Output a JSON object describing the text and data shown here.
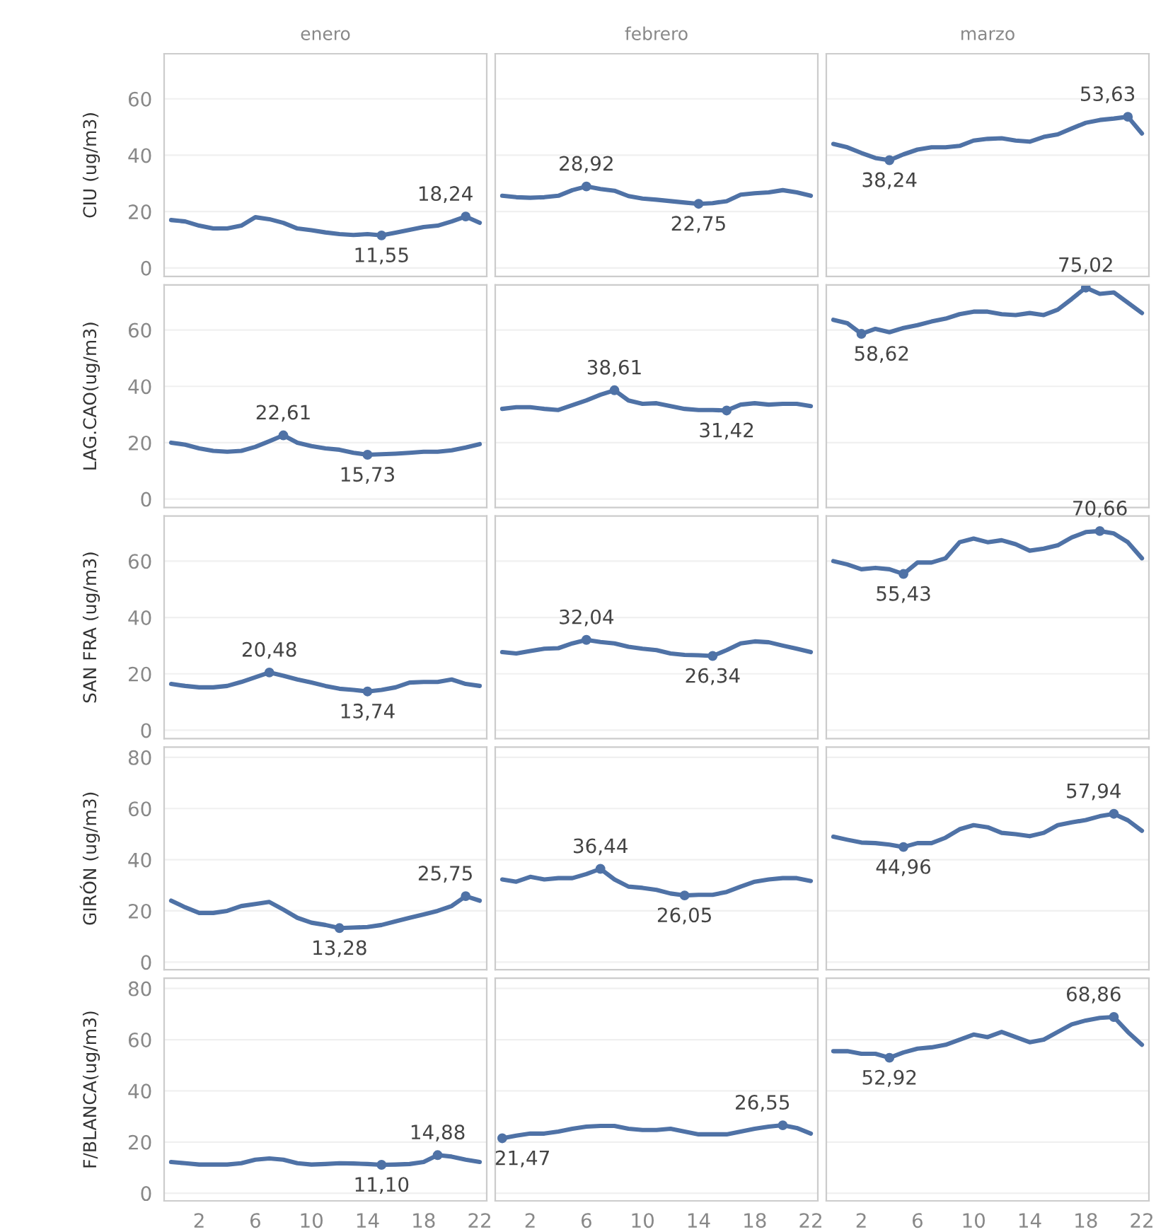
{
  "chart_data": [
    {
      "type": "line",
      "title": "enero",
      "ylabel": "CIU (ug/m3)",
      "color": "#4f72a6",
      "x": [
        0,
        1,
        2,
        3,
        4,
        5,
        6,
        7,
        8,
        9,
        10,
        11,
        12,
        13,
        14,
        15,
        16,
        17,
        18,
        19,
        20,
        21,
        22
      ],
      "values": [
        17,
        16.5,
        15,
        14,
        14,
        15,
        18,
        17.3,
        16,
        14,
        13.4,
        12.6,
        12,
        11.7,
        12,
        11.55,
        12.5,
        13.5,
        14.5,
        15,
        16.5,
        18.24,
        16
      ],
      "xlim": [
        -0.5,
        22.5
      ],
      "xticks": [
        2,
        6,
        10,
        14,
        18,
        22
      ],
      "ylim": [
        -3,
        76
      ],
      "yticks": [
        0,
        20,
        40,
        60
      ],
      "grid": "y",
      "tick_labels": "y",
      "annotations": [
        {
          "text": "18,24",
          "x": 21,
          "y": 18.24
        },
        {
          "text": "11,55",
          "x": 15,
          "y": 11.55
        }
      ]
    },
    {
      "type": "line",
      "title": "febrero",
      "color": "#4f72a6",
      "x": [
        0,
        1,
        2,
        3,
        4,
        5,
        6,
        7,
        8,
        9,
        10,
        11,
        12,
        13,
        14,
        15,
        16,
        17,
        18,
        19,
        20,
        21,
        22
      ],
      "values": [
        25.6,
        25.1,
        24.9,
        25.1,
        25.6,
        27.6,
        28.92,
        28,
        27.4,
        25.5,
        24.6,
        24.2,
        23.7,
        23.2,
        22.75,
        23,
        23.7,
        26,
        26.5,
        26.8,
        27.6,
        26.8,
        25.6
      ],
      "xlim": [
        -0.5,
        22.5
      ],
      "xticks": [
        2,
        6,
        10,
        14,
        18,
        22
      ],
      "ylim": [
        -3,
        76
      ],
      "yticks": [
        0,
        20,
        40,
        60
      ],
      "grid": "y",
      "tick_labels": false,
      "annotations": [
        {
          "text": "28,92",
          "x": 6,
          "y": 28.92
        },
        {
          "text": "22,75",
          "x": 14,
          "y": 22.75
        }
      ]
    },
    {
      "type": "line",
      "title": "marzo",
      "color": "#4f72a6",
      "x": [
        0,
        1,
        2,
        3,
        4,
        5,
        6,
        7,
        8,
        9,
        10,
        11,
        12,
        13,
        14,
        15,
        16,
        17,
        18,
        19,
        20,
        21,
        22
      ],
      "values": [
        44,
        42.8,
        40.8,
        39,
        38.24,
        40.3,
        42,
        42.8,
        42.8,
        43.3,
        45.2,
        45.8,
        46,
        45.2,
        44.8,
        46.5,
        47.4,
        49.5,
        51.5,
        52.5,
        53,
        53.63,
        47.7
      ],
      "xlim": [
        -0.5,
        22.5
      ],
      "xticks": [
        2,
        6,
        10,
        14,
        18,
        22
      ],
      "ylim": [
        -3,
        76
      ],
      "yticks": [
        0,
        20,
        40,
        60
      ],
      "grid": "y",
      "tick_labels": false,
      "annotations": [
        {
          "text": "53,63",
          "x": 21,
          "y": 53.63
        },
        {
          "text": "38,24",
          "x": 4,
          "y": 38.24
        }
      ]
    },
    {
      "type": "line",
      "ylabel": "LAG.CAO(ug/m3)",
      "color": "#4f72a6",
      "x": [
        0,
        1,
        2,
        3,
        4,
        5,
        6,
        7,
        8,
        9,
        10,
        11,
        12,
        13,
        14,
        15,
        16,
        17,
        18,
        19,
        20,
        21,
        22
      ],
      "values": [
        20,
        19.3,
        18,
        17.1,
        16.8,
        17.1,
        18.5,
        20.5,
        22.61,
        20,
        18.8,
        18,
        17.5,
        16.4,
        15.73,
        15.9,
        16.1,
        16.4,
        16.8,
        16.8,
        17.3,
        18.3,
        19.5
      ],
      "xlim": [
        -0.5,
        22.5
      ],
      "xticks": [
        2,
        6,
        10,
        14,
        18,
        22
      ],
      "ylim": [
        -3,
        76
      ],
      "yticks": [
        0,
        20,
        40,
        60
      ],
      "grid": "y",
      "tick_labels": "y",
      "annotations": [
        {
          "text": "22,61",
          "x": 8,
          "y": 22.61
        },
        {
          "text": "15,73",
          "x": 14,
          "y": 15.73
        }
      ]
    },
    {
      "type": "line",
      "color": "#4f72a6",
      "x": [
        0,
        1,
        2,
        3,
        4,
        5,
        6,
        7,
        8,
        9,
        10,
        11,
        12,
        13,
        14,
        15,
        16,
        17,
        18,
        19,
        20,
        21,
        22
      ],
      "values": [
        32,
        32.6,
        32.6,
        32,
        31.6,
        33.3,
        35,
        37,
        38.61,
        35,
        33.8,
        34,
        33,
        32,
        31.6,
        31.6,
        31.42,
        33.5,
        34,
        33.5,
        33.8,
        33.8,
        33
      ],
      "xlim": [
        -0.5,
        22.5
      ],
      "xticks": [
        2,
        6,
        10,
        14,
        18,
        22
      ],
      "ylim": [
        -3,
        76
      ],
      "yticks": [
        0,
        20,
        40,
        60
      ],
      "grid": "y",
      "tick_labels": false,
      "annotations": [
        {
          "text": "38,61",
          "x": 8,
          "y": 38.61
        },
        {
          "text": "31,42",
          "x": 16,
          "y": 31.42
        }
      ]
    },
    {
      "type": "line",
      "color": "#4f72a6",
      "x": [
        0,
        1,
        2,
        3,
        4,
        5,
        6,
        7,
        8,
        9,
        10,
        11,
        12,
        13,
        14,
        15,
        16,
        17,
        18,
        19,
        20,
        21,
        22
      ],
      "values": [
        63.6,
        62.4,
        58.62,
        60.4,
        59.2,
        60.7,
        61.7,
        63,
        64,
        65.6,
        66.5,
        66.5,
        65.6,
        65.3,
        66,
        65.3,
        67.2,
        71,
        75.02,
        72.8,
        73.3,
        69.7,
        66
      ],
      "xlim": [
        -0.5,
        22.5
      ],
      "xticks": [
        2,
        6,
        10,
        14,
        18,
        22
      ],
      "ylim": [
        -3,
        76
      ],
      "yticks": [
        0,
        20,
        40,
        60
      ],
      "grid": "y",
      "tick_labels": false,
      "annotations": [
        {
          "text": "75,02",
          "x": 18,
          "y": 75.02
        },
        {
          "text": "58,62",
          "x": 2,
          "y": 58.62
        }
      ]
    },
    {
      "type": "line",
      "ylabel": "SAN FRA (ug/m3)",
      "color": "#4f72a6",
      "x": [
        0,
        1,
        2,
        3,
        4,
        5,
        6,
        7,
        8,
        9,
        10,
        11,
        12,
        13,
        14,
        15,
        16,
        17,
        18,
        19,
        20,
        21,
        22
      ],
      "values": [
        16.4,
        15.7,
        15.2,
        15.2,
        15.7,
        17.1,
        18.8,
        20.48,
        19.3,
        18,
        16.9,
        15.7,
        14.7,
        14.3,
        13.74,
        14.3,
        15.2,
        16.9,
        17.1,
        17.1,
        18,
        16.4,
        15.7
      ],
      "xlim": [
        -0.5,
        22.5
      ],
      "xticks": [
        2,
        6,
        10,
        14,
        18,
        22
      ],
      "ylim": [
        -3,
        76
      ],
      "yticks": [
        0,
        20,
        40,
        60
      ],
      "grid": "y",
      "tick_labels": "y",
      "annotations": [
        {
          "text": "20,48",
          "x": 7,
          "y": 20.48
        },
        {
          "text": "13,74",
          "x": 14,
          "y": 13.74
        }
      ]
    },
    {
      "type": "line",
      "color": "#4f72a6",
      "x": [
        0,
        1,
        2,
        3,
        4,
        5,
        6,
        7,
        8,
        9,
        10,
        11,
        12,
        13,
        14,
        15,
        16,
        17,
        18,
        19,
        20,
        21,
        22
      ],
      "values": [
        27.7,
        27.2,
        28.1,
        28.9,
        29.1,
        30.8,
        32.04,
        31.3,
        30.8,
        29.6,
        28.9,
        28.4,
        27.2,
        26.7,
        26.6,
        26.34,
        28.4,
        30.8,
        31.5,
        31.2,
        30,
        28.9,
        27.7
      ],
      "xlim": [
        -0.5,
        22.5
      ],
      "xticks": [
        2,
        6,
        10,
        14,
        18,
        22
      ],
      "ylim": [
        -3,
        76
      ],
      "yticks": [
        0,
        20,
        40,
        60
      ],
      "grid": "y",
      "tick_labels": false,
      "annotations": [
        {
          "text": "32,04",
          "x": 6,
          "y": 32.04
        },
        {
          "text": "26,34",
          "x": 15,
          "y": 26.34
        }
      ]
    },
    {
      "type": "line",
      "color": "#4f72a6",
      "x": [
        0,
        1,
        2,
        3,
        4,
        5,
        6,
        7,
        8,
        9,
        10,
        11,
        12,
        13,
        14,
        15,
        16,
        17,
        18,
        19,
        20,
        21,
        22
      ],
      "values": [
        60,
        58.8,
        57.1,
        57.6,
        57.1,
        55.43,
        59.5,
        59.5,
        61,
        66.7,
        68,
        66.7,
        67.4,
        66,
        63.7,
        64.4,
        65.6,
        68.4,
        70.3,
        70.66,
        69.8,
        66.7,
        61
      ],
      "xlim": [
        -0.5,
        22.5
      ],
      "xticks": [
        2,
        6,
        10,
        14,
        18,
        22
      ],
      "ylim": [
        -3,
        76
      ],
      "yticks": [
        0,
        20,
        40,
        60
      ],
      "grid": "y",
      "tick_labels": false,
      "annotations": [
        {
          "text": "70,66",
          "x": 19,
          "y": 70.66
        },
        {
          "text": "55,43",
          "x": 5,
          "y": 55.43
        }
      ]
    },
    {
      "type": "line",
      "ylabel": "GIRÓN (ug/m3)",
      "color": "#4f72a6",
      "x": [
        0,
        1,
        2,
        3,
        4,
        5,
        6,
        7,
        8,
        9,
        10,
        11,
        12,
        13,
        14,
        15,
        16,
        17,
        18,
        19,
        20,
        21,
        22
      ],
      "values": [
        24,
        21.4,
        19.2,
        19.2,
        20,
        21.9,
        22.7,
        23.5,
        20.5,
        17.3,
        15.4,
        14.5,
        13.28,
        13.5,
        13.7,
        14.5,
        15.9,
        17.3,
        18.6,
        20,
        21.9,
        25.75,
        24
      ],
      "xlim": [
        -0.5,
        22.5
      ],
      "xticks": [
        2,
        6,
        10,
        14,
        18,
        22
      ],
      "ylim": [
        -3,
        84
      ],
      "yticks": [
        0,
        20,
        40,
        60,
        80
      ],
      "grid": "y",
      "tick_labels": "y",
      "annotations": [
        {
          "text": "25,75",
          "x": 21,
          "y": 25.75
        },
        {
          "text": "13,28",
          "x": 12,
          "y": 13.28
        }
      ]
    },
    {
      "type": "line",
      "color": "#4f72a6",
      "x": [
        0,
        1,
        2,
        3,
        4,
        5,
        6,
        7,
        8,
        9,
        10,
        11,
        12,
        13,
        14,
        15,
        16,
        17,
        18,
        19,
        20,
        21,
        22
      ],
      "values": [
        32.3,
        31.4,
        33.3,
        32.3,
        32.8,
        32.8,
        34.4,
        36.44,
        32.3,
        29.5,
        29,
        28.2,
        26.8,
        26.05,
        26.3,
        26.3,
        27.4,
        29.5,
        31.4,
        32.3,
        32.8,
        32.8,
        31.7
      ],
      "xlim": [
        -0.5,
        22.5
      ],
      "xticks": [
        2,
        6,
        10,
        14,
        18,
        22
      ],
      "ylim": [
        -3,
        84
      ],
      "yticks": [
        0,
        20,
        40,
        60,
        80
      ],
      "grid": "y",
      "tick_labels": false,
      "annotations": [
        {
          "text": "36,44",
          "x": 7,
          "y": 36.44
        },
        {
          "text": "26,05",
          "x": 13,
          "y": 26.05
        }
      ]
    },
    {
      "type": "line",
      "color": "#4f72a6",
      "x": [
        0,
        1,
        2,
        3,
        4,
        5,
        6,
        7,
        8,
        9,
        10,
        11,
        12,
        13,
        14,
        15,
        16,
        17,
        18,
        19,
        20,
        21,
        22
      ],
      "values": [
        49,
        47.8,
        46.7,
        46.5,
        45.9,
        44.96,
        46.5,
        46.5,
        48.6,
        51.9,
        53.5,
        52.7,
        50.5,
        50,
        49.2,
        50.5,
        53.5,
        54.6,
        55.5,
        57,
        57.94,
        55.4,
        51.3
      ],
      "xlim": [
        -0.5,
        22.5
      ],
      "xticks": [
        2,
        6,
        10,
        14,
        18,
        22
      ],
      "ylim": [
        -3,
        84
      ],
      "yticks": [
        0,
        20,
        40,
        60,
        80
      ],
      "grid": "y",
      "tick_labels": false,
      "annotations": [
        {
          "text": "57,94",
          "x": 20,
          "y": 57.94
        },
        {
          "text": "44,96",
          "x": 5,
          "y": 44.96
        }
      ]
    },
    {
      "type": "line",
      "ylabel": "F/BLANCA(ug/m3)",
      "color": "#4f72a6",
      "x": [
        0,
        1,
        2,
        3,
        4,
        5,
        6,
        7,
        8,
        9,
        10,
        11,
        12,
        13,
        14,
        15,
        16,
        17,
        18,
        19,
        20,
        21,
        22
      ],
      "values": [
        12.2,
        11.7,
        11.2,
        11.2,
        11.2,
        11.7,
        13.1,
        13.6,
        13.1,
        11.7,
        11.2,
        11.4,
        11.7,
        11.6,
        11.4,
        11.1,
        11.2,
        11.4,
        12.2,
        14.88,
        14.3,
        13.1,
        12.2
      ],
      "xlim": [
        -0.5,
        22.5
      ],
      "xticks": [
        2,
        6,
        10,
        14,
        18,
        22
      ],
      "ylim": [
        -3,
        84
      ],
      "yticks": [
        0,
        20,
        40,
        60,
        80
      ],
      "grid": "y",
      "annotations": [
        {
          "text": "14,88",
          "x": 19,
          "y": 14.88
        },
        {
          "text": "11,10",
          "x": 15,
          "y": 11.1
        }
      ]
    },
    {
      "type": "line",
      "color": "#4f72a6",
      "x": [
        0,
        1,
        2,
        3,
        4,
        5,
        6,
        7,
        8,
        9,
        10,
        11,
        12,
        13,
        14,
        15,
        16,
        17,
        18,
        19,
        20,
        21,
        22
      ],
      "values": [
        21.47,
        22.5,
        23.3,
        23.3,
        24.1,
        25.2,
        26,
        26.3,
        26.3,
        25.2,
        24.7,
        24.7,
        25.2,
        24.1,
        23,
        23,
        23,
        24.1,
        25.2,
        26,
        26.55,
        25.5,
        23.3
      ],
      "xlim": [
        -0.5,
        22.5
      ],
      "xticks": [
        2,
        6,
        10,
        14,
        18,
        22
      ],
      "ylim": [
        -3,
        84
      ],
      "yticks": [
        0,
        20,
        40,
        60,
        80
      ],
      "grid": "y",
      "tick_labels": "x",
      "annotations": [
        {
          "text": "26,55",
          "x": 20,
          "y": 26.55
        },
        {
          "text": "21,47",
          "x": 0,
          "y": 21.47
        }
      ]
    },
    {
      "type": "line",
      "color": "#4f72a6",
      "x": [
        0,
        1,
        2,
        3,
        4,
        5,
        6,
        7,
        8,
        9,
        10,
        11,
        12,
        13,
        14,
        15,
        16,
        17,
        18,
        19,
        20,
        21,
        22
      ],
      "values": [
        55.5,
        55.5,
        54.5,
        54.5,
        52.92,
        55,
        56.5,
        57,
        58,
        60,
        62,
        61,
        63,
        61,
        59,
        60,
        63,
        66,
        67.5,
        68.5,
        68.86,
        63,
        58
      ],
      "xlim": [
        -0.5,
        22.5
      ],
      "xticks": [
        2,
        6,
        10,
        14,
        18,
        22
      ],
      "ylim": [
        -3,
        84
      ],
      "yticks": [
        0,
        20,
        40,
        60,
        80
      ],
      "grid": "y",
      "tick_labels": "x",
      "annotations": [
        {
          "text": "68,86",
          "x": 20,
          "y": 68.86
        },
        {
          "text": "52,92",
          "x": 4,
          "y": 52.92
        }
      ]
    }
  ]
}
